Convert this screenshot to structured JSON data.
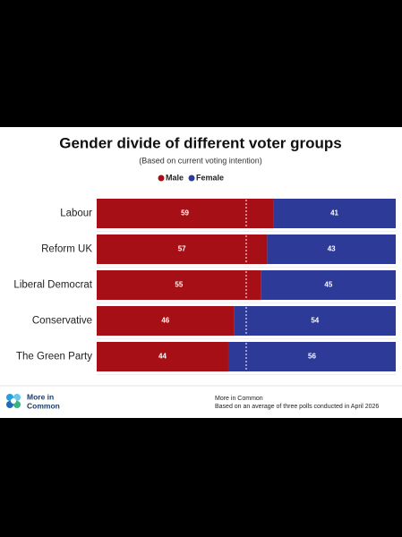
{
  "chart_data": {
    "type": "stacked-bar",
    "title": "Gender divide of different voter groups",
    "subtitle": "(Based on current voting intention)",
    "categories": [
      "Labour",
      "Reform UK",
      "Liberal Democrat",
      "Conservative",
      "The Green Party"
    ],
    "series": [
      {
        "name": "Male",
        "color": "#a50f15",
        "values": [
          59,
          57,
          55,
          46,
          44
        ]
      },
      {
        "name": "Female",
        "color": "#2e3a98",
        "values": [
          41,
          43,
          45,
          54,
          56
        ]
      }
    ],
    "xlim": [
      0,
      100
    ],
    "reference_line": 50
  },
  "footer": {
    "logo": [
      "More in",
      "Common"
    ],
    "source": "More in Common",
    "note": "Based on an average of three polls conducted in April 2026"
  }
}
